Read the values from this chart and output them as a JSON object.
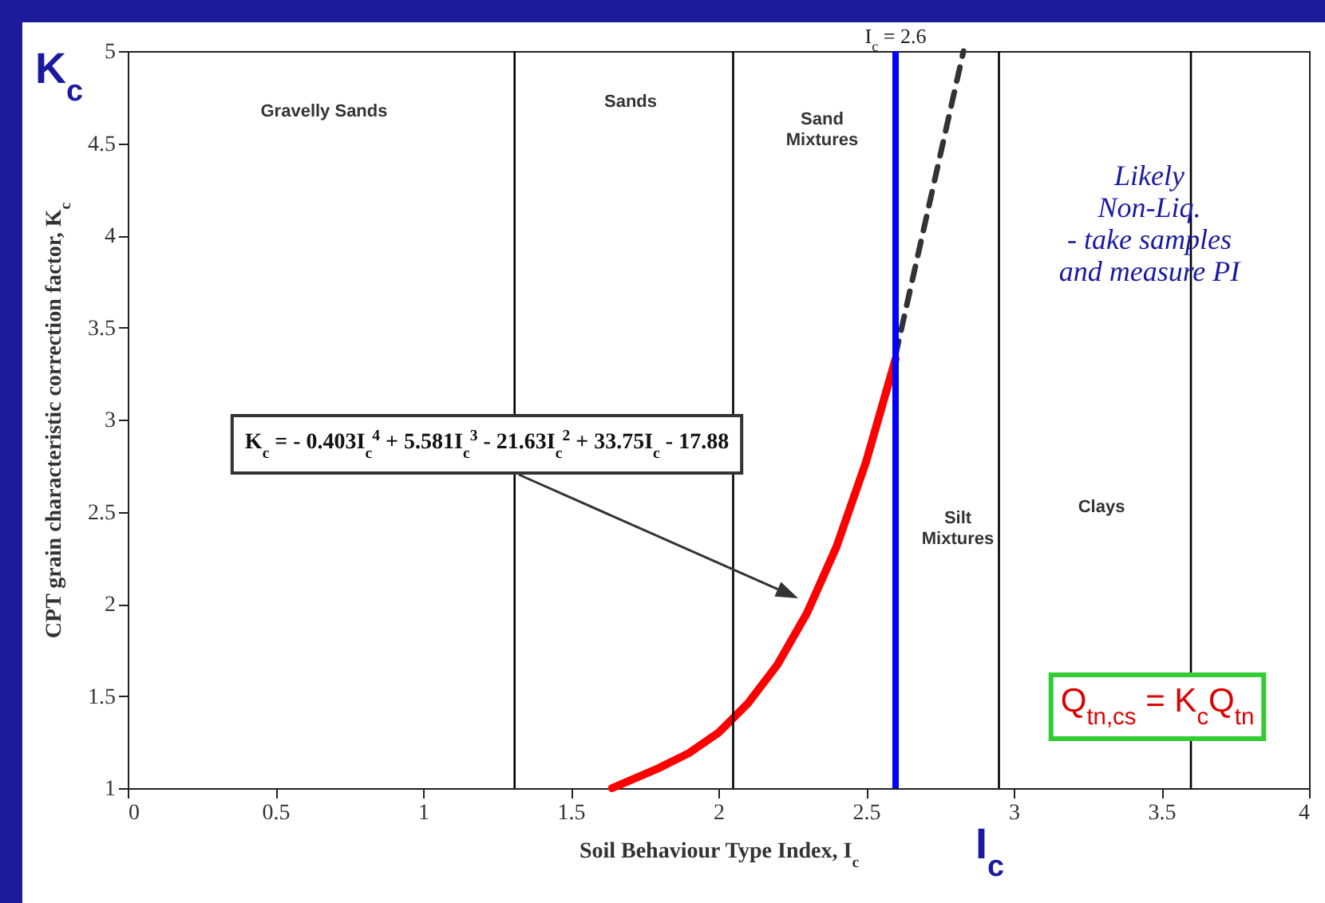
{
  "chart_data": {
    "type": "line",
    "xlabel": "Soil Behaviour Type Index, I$_{c}$",
    "ylabel": "CPT grain characteristic correction factor, K$_{c}$",
    "xlim": [
      0,
      4
    ],
    "ylim": [
      1,
      5
    ],
    "xticks": [
      0,
      0.5,
      1,
      1.5,
      2,
      2.5,
      3,
      3.5,
      4
    ],
    "yticks": [
      1,
      1.5,
      2,
      2.5,
      3,
      3.5,
      4,
      4.5,
      5
    ],
    "grid": false,
    "series": [
      {
        "color": "#ff0000",
        "line_style": "solid",
        "x": [
          1.64,
          1.8,
          1.9,
          2.0,
          2.1,
          2.2,
          2.3,
          2.4,
          2.5,
          2.6
        ],
        "values": [
          1.0,
          1.11,
          1.19,
          1.3,
          1.46,
          1.67,
          1.95,
          2.31,
          2.77,
          3.33
        ]
      },
      {
        "color": "#333333",
        "line_style": "dashed",
        "x": [
          2.6,
          2.83
        ],
        "values": [
          3.35,
          5.0
        ]
      }
    ],
    "ref_lines": [
      {
        "axis": "x",
        "value": 1.31,
        "color": "#000000"
      },
      {
        "axis": "x",
        "value": 2.05,
        "color": "#000000"
      },
      {
        "axis": "x",
        "value": 2.6,
        "label": "I$_{c}$ = 2.6",
        "color": "#0000ff"
      },
      {
        "axis": "x",
        "value": 2.95,
        "color": "#000000"
      },
      {
        "axis": "x",
        "value": 3.6,
        "color": "#000000"
      }
    ],
    "annotations": [
      "Gravelly Sands",
      "Sands",
      "Sand\nMixtures",
      "Silt\nMixtures",
      "Clays",
      "Likely\nNon-Liq.\n- take samples\nand measure PI",
      "K$_{c}$ = - 0.403I$_{c}$$^{4}$ + 5.581I$_{c}$$^{3}$ - 21.63I$_{c}$$^{2}$ + 33.75I$_{c}$ - 17.88",
      "Q$_{tn,cs}$ = K$_{c}$Q$_{tn}$",
      "K$_{c}$",
      "I$_{c}$"
    ]
  }
}
